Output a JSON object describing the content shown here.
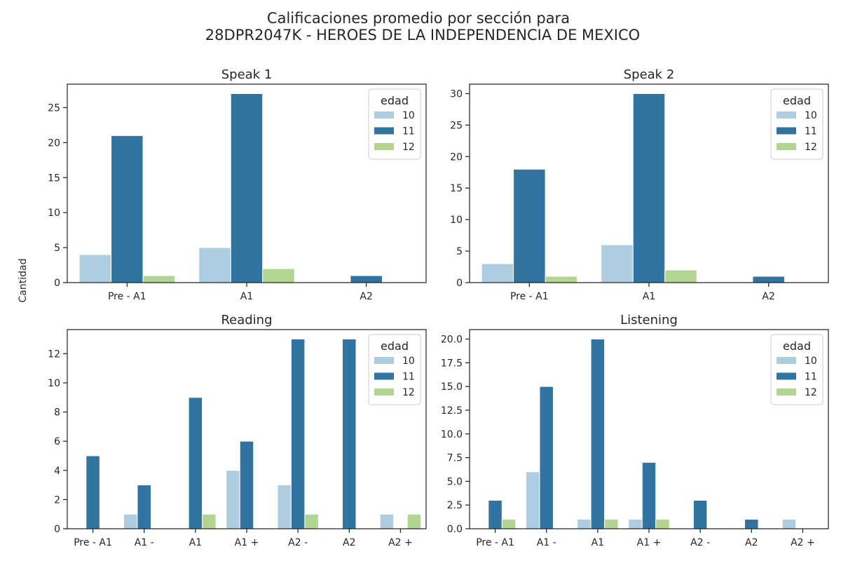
{
  "figure": {
    "title_line1": "Calificaciones promedio por sección para",
    "title_line2": "28DPR2047K - HEROES DE LA INDEPENDENCIA DE MEXICO",
    "ylabel": "Cantidad"
  },
  "colors": {
    "10": "#aecde1",
    "11": "#3274a1",
    "12": "#b2d691",
    "axis": "#262626"
  },
  "chart_data": [
    {
      "type": "bar",
      "title": "Speak 1",
      "categories": [
        "Pre - A1",
        "A1",
        "A2"
      ],
      "series": [
        {
          "name": "10",
          "values": [
            4,
            5,
            0
          ]
        },
        {
          "name": "11",
          "values": [
            21,
            27,
            1
          ]
        },
        {
          "name": "12",
          "values": [
            1,
            2,
            0
          ]
        }
      ],
      "ylim": [
        0,
        28.35
      ],
      "yticks": [
        0,
        5,
        10,
        15,
        20,
        25
      ],
      "ytick_labels": [
        "0",
        "5",
        "10",
        "15",
        "20",
        "25"
      ],
      "legend_title": "edad",
      "legend_loc": "upper right"
    },
    {
      "type": "bar",
      "title": "Speak 2",
      "categories": [
        "Pre - A1",
        "A1",
        "A2"
      ],
      "series": [
        {
          "name": "10",
          "values": [
            3,
            6,
            0
          ]
        },
        {
          "name": "11",
          "values": [
            18,
            30,
            1
          ]
        },
        {
          "name": "12",
          "values": [
            1,
            2,
            0
          ]
        }
      ],
      "ylim": [
        0,
        31.5
      ],
      "yticks": [
        0,
        5,
        10,
        15,
        20,
        25,
        30
      ],
      "ytick_labels": [
        "0",
        "5",
        "10",
        "15",
        "20",
        "25",
        "30"
      ],
      "legend_title": "edad",
      "legend_loc": "upper right"
    },
    {
      "type": "bar",
      "title": "Reading",
      "categories": [
        "Pre - A1",
        "A1 -",
        "A1",
        "A1 +",
        "A2 -",
        "A2",
        "A2 +"
      ],
      "series": [
        {
          "name": "10",
          "values": [
            0,
            1,
            0,
            4,
            3,
            0,
            1
          ]
        },
        {
          "name": "11",
          "values": [
            5,
            3,
            9,
            6,
            13,
            13,
            0
          ]
        },
        {
          "name": "12",
          "values": [
            0,
            0,
            1,
            0,
            1,
            0,
            1
          ]
        }
      ],
      "ylim": [
        0,
        13.65
      ],
      "yticks": [
        0,
        2,
        4,
        6,
        8,
        10,
        12
      ],
      "ytick_labels": [
        "0",
        "2",
        "4",
        "6",
        "8",
        "10",
        "12"
      ],
      "legend_title": "edad",
      "legend_loc": "upper right"
    },
    {
      "type": "bar",
      "title": "Listening",
      "categories": [
        "Pre - A1",
        "A1 -",
        "A1",
        "A1 +",
        "A2 -",
        "A2",
        "A2 +"
      ],
      "series": [
        {
          "name": "10",
          "values": [
            0,
            6,
            1,
            1,
            0,
            0,
            1
          ]
        },
        {
          "name": "11",
          "values": [
            3,
            15,
            20,
            7,
            3,
            1,
            0
          ]
        },
        {
          "name": "12",
          "values": [
            1,
            0,
            1,
            1,
            0,
            0,
            0
          ]
        }
      ],
      "ylim": [
        0,
        21
      ],
      "yticks": [
        0,
        2.5,
        5,
        7.5,
        10,
        12.5,
        15,
        17.5,
        20
      ],
      "ytick_labels": [
        "0.0",
        "2.5",
        "5.0",
        "7.5",
        "10.0",
        "12.5",
        "15.0",
        "17.5",
        "20.0"
      ],
      "legend_title": "edad",
      "legend_loc": "upper right"
    }
  ]
}
